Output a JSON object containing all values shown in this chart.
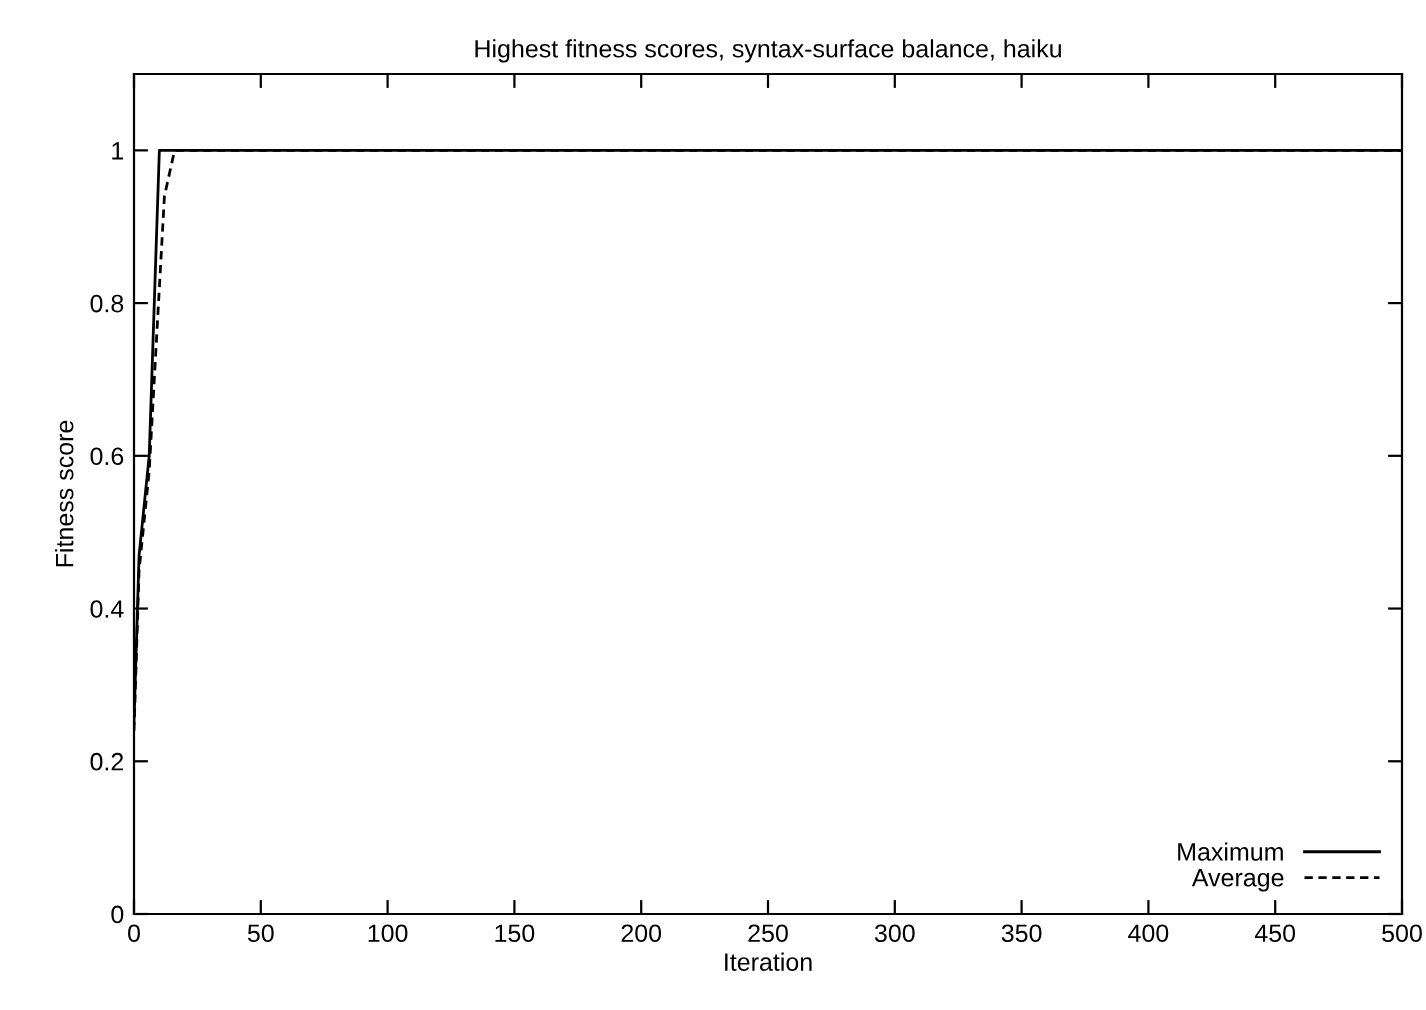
{
  "chart_data": {
    "type": "line",
    "title": "Highest fitness scores, syntax-surface balance, haiku",
    "xlabel": "Iteration",
    "ylabel": "Fitness score",
    "xlim": [
      0,
      500
    ],
    "xticks": [
      0,
      50,
      100,
      150,
      200,
      250,
      300,
      350,
      400,
      450,
      500
    ],
    "ylim": [
      0,
      1.1
    ],
    "yticks": [
      0,
      0.2,
      0.4,
      0.6,
      0.8,
      1
    ],
    "legend": "bottom right",
    "grid": false,
    "series": [
      {
        "name": "Maximum",
        "color": "#000000",
        "line_style": "solid",
        "x": [
          0,
          2,
          6,
          10,
          500
        ],
        "values": [
          0.25,
          0.47,
          0.6,
          1.0,
          1.0
        ]
      },
      {
        "name": "Average",
        "color": "#000000",
        "line_style": "dashed",
        "x": [
          0,
          2,
          6,
          12,
          14,
          16,
          500
        ],
        "values": [
          0.24,
          0.45,
          0.58,
          0.94,
          0.97,
          1.0,
          1.0
        ]
      }
    ]
  }
}
